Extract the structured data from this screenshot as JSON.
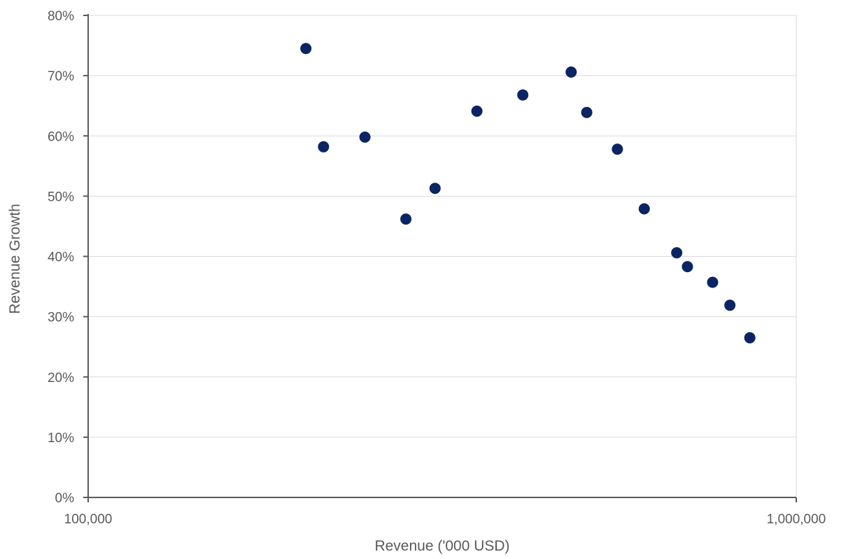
{
  "chart_data": {
    "type": "scatter",
    "title": "",
    "xlabel": "Revenue ('000 USD)",
    "ylabel": "Revenue Growth",
    "x_scale": "log",
    "xlim": [
      100000,
      1000000
    ],
    "ylim": [
      0,
      0.8
    ],
    "x_ticks": [
      100000,
      1000000
    ],
    "x_tick_labels": [
      "100,000",
      "1,000,000"
    ],
    "y_ticks": [
      0,
      0.1,
      0.2,
      0.3,
      0.4,
      0.5,
      0.6,
      0.7,
      0.8
    ],
    "y_tick_labels": [
      "0%",
      "10%",
      "20%",
      "30%",
      "40%",
      "50%",
      "60%",
      "70%",
      "80%"
    ],
    "grid": "horizontal",
    "legend": "none",
    "marker_color": "#0b2463",
    "points": [
      {
        "x": 203000,
        "y": 0.745
      },
      {
        "x": 215000,
        "y": 0.582
      },
      {
        "x": 246000,
        "y": 0.598
      },
      {
        "x": 281000,
        "y": 0.462
      },
      {
        "x": 309000,
        "y": 0.513
      },
      {
        "x": 354000,
        "y": 0.641
      },
      {
        "x": 411000,
        "y": 0.668
      },
      {
        "x": 481000,
        "y": 0.706
      },
      {
        "x": 506000,
        "y": 0.639
      },
      {
        "x": 559000,
        "y": 0.578
      },
      {
        "x": 610000,
        "y": 0.479
      },
      {
        "x": 678000,
        "y": 0.406
      },
      {
        "x": 702000,
        "y": 0.383
      },
      {
        "x": 762000,
        "y": 0.357
      },
      {
        "x": 806000,
        "y": 0.319
      },
      {
        "x": 860000,
        "y": 0.265
      }
    ]
  }
}
